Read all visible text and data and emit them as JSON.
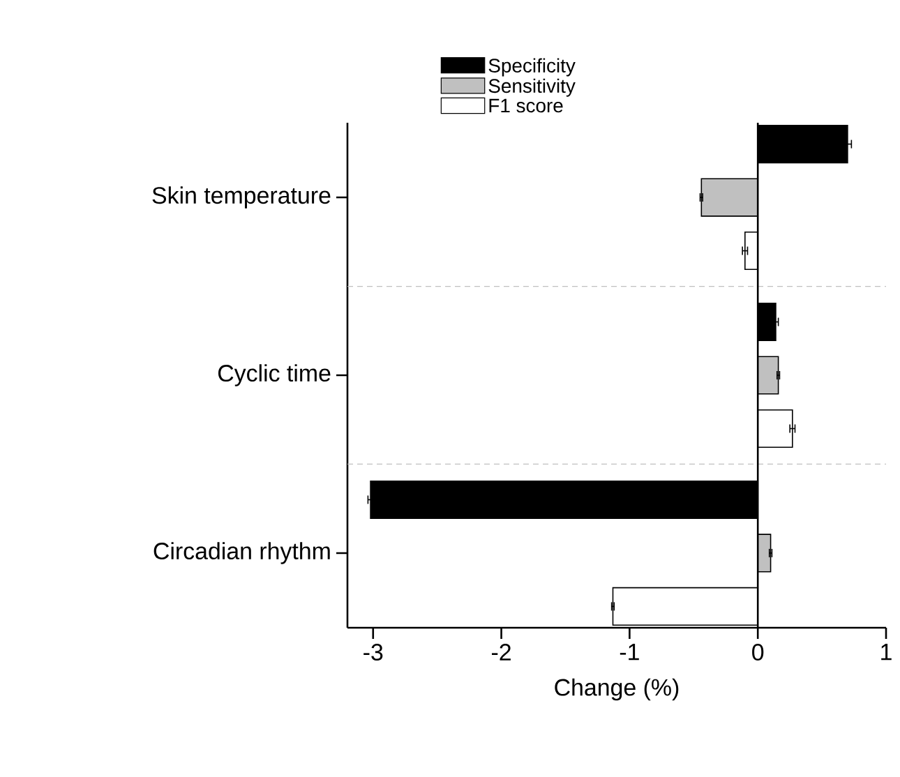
{
  "chart_data": {
    "type": "bar",
    "orientation": "horizontal",
    "xlabel": "Change (%)",
    "categories": [
      "Skin temperature",
      "Cyclic time",
      "Circadian rhythm"
    ],
    "series": [
      {
        "name": "Specificity",
        "color": "#000000",
        "values": [
          0.7,
          0.14,
          -3.02
        ],
        "errors": [
          0.03,
          0.02,
          0.02
        ]
      },
      {
        "name": "Sensitivity",
        "color": "#c0c0c0",
        "values": [
          -0.44,
          0.16,
          0.1
        ],
        "errors": [
          0.01,
          0.01,
          0.01
        ]
      },
      {
        "name": "F1 score",
        "color": "#ffffff",
        "values": [
          -0.1,
          0.27,
          -1.13
        ],
        "errors": [
          0.02,
          0.02,
          0.01
        ]
      }
    ],
    "xlim": [
      -3.2,
      1
    ],
    "xticks": [
      -3,
      -2,
      -1,
      0,
      1
    ],
    "legend": "top",
    "ref_lines": [
      {
        "axis": "x",
        "value": 0,
        "color": "#000000",
        "line_style": "solid"
      }
    ]
  }
}
